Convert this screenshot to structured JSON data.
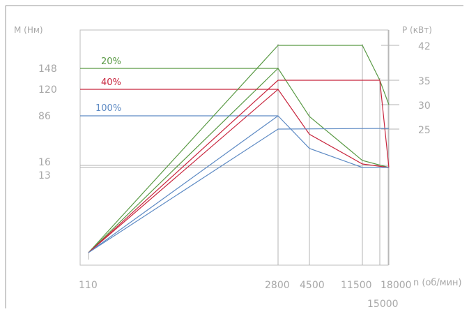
{
  "chart_data": {
    "type": "line",
    "left_axis_title": "M (Нм)",
    "right_axis_title": "P (кВт)",
    "x_axis_title": "n (об/мин)",
    "x_ticks": [
      "110",
      "2800",
      "4500",
      "11500",
      "18000",
      "15000"
    ],
    "x_tick_values": [
      110,
      2800,
      4500,
      11500,
      18000,
      15000
    ],
    "left_ticks": [
      "148",
      "120",
      "86",
      "16",
      "13"
    ],
    "left_tick_values": [
      148,
      120,
      86,
      16,
      13
    ],
    "right_ticks": [
      "42",
      "35",
      "30",
      "25"
    ],
    "right_tick_values": [
      42,
      35,
      30,
      25
    ],
    "torque_series": [
      {
        "name": "20%",
        "color": "#5a9a45",
        "points": [
          [
            110,
            0
          ],
          [
            2800,
            148
          ],
          [
            4500,
            85
          ],
          [
            11500,
            23
          ],
          [
            18000,
            13
          ]
        ]
      },
      {
        "name": "40%",
        "color": "#c8243c",
        "points": [
          [
            110,
            0
          ],
          [
            2800,
            120
          ],
          [
            4500,
            60
          ],
          [
            11500,
            18
          ],
          [
            18000,
            13
          ]
        ]
      },
      {
        "name": "100%",
        "color": "#5d8ac4",
        "points": [
          [
            110,
            0
          ],
          [
            2800,
            86
          ],
          [
            4500,
            40
          ],
          [
            11500,
            13
          ],
          [
            18000,
            13
          ]
        ]
      }
    ],
    "power_series": [
      {
        "name": "20%",
        "color": "#5a9a45",
        "points": [
          [
            110,
            0
          ],
          [
            2800,
            42
          ],
          [
            11500,
            42
          ],
          [
            15000,
            35
          ],
          [
            18000,
            30
          ]
        ]
      },
      {
        "name": "40%",
        "color": "#c8243c",
        "points": [
          [
            110,
            0
          ],
          [
            2800,
            35
          ],
          [
            15000,
            35
          ],
          [
            18000,
            13
          ]
        ]
      },
      {
        "name": "100%",
        "color": "#5d8ac4",
        "points": [
          [
            110,
            0
          ],
          [
            2800,
            25
          ],
          [
            18000,
            25.2
          ]
        ]
      }
    ]
  }
}
